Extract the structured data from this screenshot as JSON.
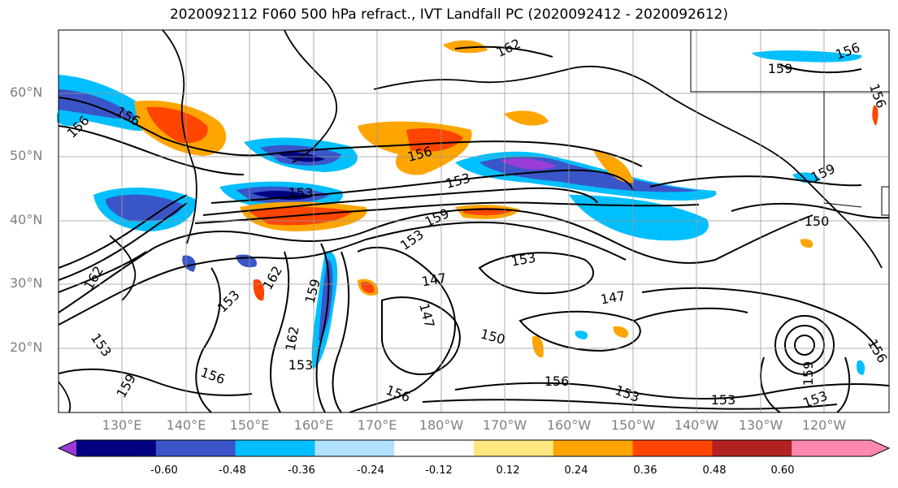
{
  "title": "2020092112 F060 500 hPa refract., IVT Landfall PC (2020092412 - 2020092612)",
  "lat_labels": [
    "60°N",
    "50°N",
    "40°N",
    "30°N",
    "20°N"
  ],
  "lon_labels": [
    "130°E",
    "140°E",
    "150°E",
    "160°E",
    "170°E",
    "180°W",
    "170°W",
    "160°W",
    "150°W",
    "140°W",
    "130°W",
    "120°W"
  ],
  "contour_labels": [
    "162",
    "159",
    "156",
    "156",
    "156",
    "156",
    "156",
    "153",
    "159",
    "159",
    "153",
    "150",
    "153",
    "147",
    "153",
    "147",
    "147",
    "150",
    "153",
    "162",
    "159",
    "162",
    "153",
    "156",
    "159",
    "156",
    "156",
    "153",
    "153",
    "153",
    "159",
    "156",
    "162",
    "153"
  ],
  "colorbar": {
    "ticks": [
      "-0.60",
      "-0.48",
      "-0.36",
      "-0.24",
      "-0.12",
      "0.12",
      "0.24",
      "0.36",
      "0.48",
      "0.60"
    ],
    "colors": [
      "#9a3cd6",
      "#000080",
      "#3a55c8",
      "#00bfff",
      "#b0e2ff",
      "#ffffff",
      "#ffe680",
      "#ffa500",
      "#ff4500",
      "#b22222",
      "#ff88b0",
      "#ff88b0"
    ]
  }
}
